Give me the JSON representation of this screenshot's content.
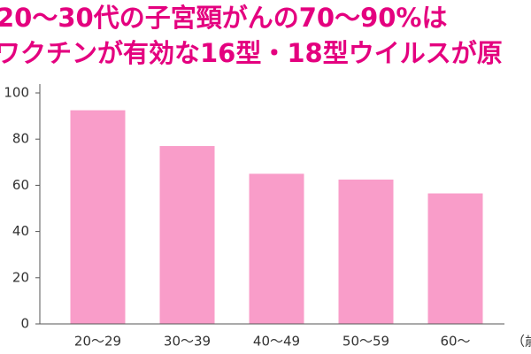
{
  "chart_data": {
    "type": "bar",
    "title": [
      "20～30代の子宮頸がんの70～90%は",
      "ワクチンが有効な16型・18型ウイルスが原"
    ],
    "x_label": "（歳",
    "categories": [
      "20～29",
      "30～39",
      "40～49",
      "50～59",
      "60～"
    ],
    "values": [
      92.5,
      77,
      65,
      62.5,
      56.5
    ],
    "color": "#f99dc9",
    "ylim": [
      0,
      100
    ],
    "yticks": [
      0,
      20,
      40,
      60,
      80,
      100
    ],
    "grid": false
  }
}
